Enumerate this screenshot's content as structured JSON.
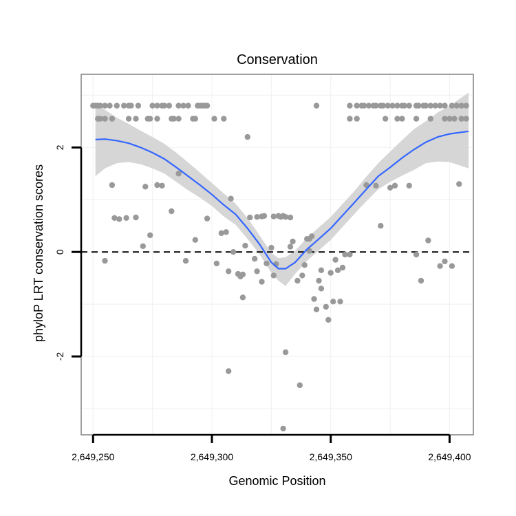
{
  "chart_data": {
    "type": "scatter",
    "title": "Conservation",
    "xlabel": "Genomic Position",
    "ylabel": "phyloP LRT conservation scores",
    "xlim": [
      2649245,
      2649410
    ],
    "ylim": [
      -3.5,
      3.4
    ],
    "x_ticks": [
      {
        "value": 2649250,
        "label": "2,649,250"
      },
      {
        "value": 2649300,
        "label": "2,649,300"
      },
      {
        "value": 2649350,
        "label": "2,649,350"
      },
      {
        "value": 2649400,
        "label": "2,649,400"
      }
    ],
    "y_ticks": [
      {
        "value": -2,
        "label": "-2"
      },
      {
        "value": 0,
        "label": "0"
      },
      {
        "value": 2,
        "label": "2"
      }
    ],
    "reference_line": {
      "y": 0,
      "style": "dashed",
      "color": "#000000"
    },
    "colors": {
      "points": "#999999",
      "smooth": "#3366ff",
      "ribbon": "#d6d6d6",
      "grid": "#f2f2f2",
      "frame": "#808080"
    },
    "points": [
      [
        2649250,
        2.8
      ],
      [
        2649251,
        2.8
      ],
      [
        2649252,
        2.8
      ],
      [
        2649253,
        2.8
      ],
      [
        2649255,
        2.8
      ],
      [
        2649257,
        2.8
      ],
      [
        2649260,
        2.8
      ],
      [
        2649263,
        2.8
      ],
      [
        2649265,
        2.8
      ],
      [
        2649266,
        2.8
      ],
      [
        2649269,
        2.8
      ],
      [
        2649275,
        2.8
      ],
      [
        2649277,
        2.8
      ],
      [
        2649279,
        2.8
      ],
      [
        2649280,
        2.8
      ],
      [
        2649282,
        2.8
      ],
      [
        2649286,
        2.8
      ],
      [
        2649288,
        2.8
      ],
      [
        2649290,
        2.8
      ],
      [
        2649294,
        2.8
      ],
      [
        2649295,
        2.8
      ],
      [
        2649296,
        2.8
      ],
      [
        2649297,
        2.8
      ],
      [
        2649298,
        2.8
      ],
      [
        2649252,
        2.55
      ],
      [
        2649253,
        2.55
      ],
      [
        2649255,
        2.55
      ],
      [
        2649258,
        2.55
      ],
      [
        2649265,
        2.55
      ],
      [
        2649268,
        2.55
      ],
      [
        2649273,
        2.55
      ],
      [
        2649274,
        2.55
      ],
      [
        2649277,
        2.55
      ],
      [
        2649283,
        2.55
      ],
      [
        2649284,
        2.55
      ],
      [
        2649286,
        2.55
      ],
      [
        2649292,
        2.55
      ],
      [
        2649293,
        2.55
      ],
      [
        2649301,
        2.55
      ],
      [
        2649305,
        2.55
      ],
      [
        2649315,
        2.2
      ],
      [
        2649286,
        1.5
      ],
      [
        2649258,
        1.28
      ],
      [
        2649272,
        1.25
      ],
      [
        2649277,
        1.28
      ],
      [
        2649279,
        1.27
      ],
      [
        2649308,
        1.02
      ],
      [
        2649283,
        0.78
      ],
      [
        2649259,
        0.65
      ],
      [
        2649261,
        0.63
      ],
      [
        2649264,
        0.65
      ],
      [
        2649268,
        0.66
      ],
      [
        2649298,
        0.64
      ],
      [
        2649274,
        0.32
      ],
      [
        2649271,
        0.11
      ],
      [
        2649255,
        -0.17
      ],
      [
        2649293,
        0.23
      ],
      [
        2649289,
        -0.17
      ],
      [
        2649304,
        0.36
      ],
      [
        2649306,
        0.38
      ],
      [
        2649302,
        -0.22
      ],
      [
        2649307,
        -0.37
      ],
      [
        2649309,
        0
      ],
      [
        2649311,
        -0.42
      ],
      [
        2649312,
        -0.47
      ],
      [
        2649313,
        -0.43
      ],
      [
        2649314,
        0.12
      ],
      [
        2649316,
        0.66
      ],
      [
        2649319,
        0.67
      ],
      [
        2649321,
        0.68
      ],
      [
        2649322,
        0.69
      ],
      [
        2649313,
        -0.87
      ],
      [
        2649318,
        -0.13
      ],
      [
        2649319,
        -0.37
      ],
      [
        2649321,
        -0.57
      ],
      [
        2649323,
        -0.22
      ],
      [
        2649325,
        0.08
      ],
      [
        2649326,
        -0.45
      ],
      [
        2649326,
        0.68
      ],
      [
        2649327,
        -0.23
      ],
      [
        2649328,
        0.69
      ],
      [
        2649329,
        0.67
      ],
      [
        2649330,
        0.69
      ],
      [
        2649331,
        0.67
      ],
      [
        2649333,
        0.66
      ],
      [
        2649307,
        -2.28
      ],
      [
        2649331,
        -1.92
      ],
      [
        2649337,
        -2.55
      ],
      [
        2649330,
        -3.38
      ],
      [
        2649333,
        0.1
      ],
      [
        2649334,
        0.2
      ],
      [
        2649336,
        -0.55
      ],
      [
        2649338,
        -0.45
      ],
      [
        2649339,
        -0.25
      ],
      [
        2649340,
        0.25
      ],
      [
        2649341,
        0.25
      ],
      [
        2649341,
        0.02
      ],
      [
        2649342,
        0.3
      ],
      [
        2649343,
        -0.9
      ],
      [
        2649344,
        -1.1
      ],
      [
        2649345,
        -0.55
      ],
      [
        2649346,
        -0.35
      ],
      [
        2649346,
        -0.7
      ],
      [
        2649348,
        -1.05
      ],
      [
        2649349,
        -1.3
      ],
      [
        2649350,
        -0.4
      ],
      [
        2649351,
        -0.95
      ],
      [
        2649352,
        -0.15
      ],
      [
        2649353,
        -0.35
      ],
      [
        2649354,
        -0.95
      ],
      [
        2649355,
        -0.3
      ],
      [
        2649356,
        -0.05
      ],
      [
        2649358,
        -0.05
      ],
      [
        2649344,
        2.8
      ],
      [
        2649358,
        2.8
      ],
      [
        2649361,
        2.8
      ],
      [
        2649363,
        2.8
      ],
      [
        2649364,
        2.8
      ],
      [
        2649366,
        2.8
      ],
      [
        2649368,
        2.8
      ],
      [
        2649369,
        2.8
      ],
      [
        2649371,
        2.8
      ],
      [
        2649372,
        2.8
      ],
      [
        2649374,
        2.8
      ],
      [
        2649376,
        2.8
      ],
      [
        2649378,
        2.8
      ],
      [
        2649380,
        2.8
      ],
      [
        2649381,
        2.8
      ],
      [
        2649383,
        2.8
      ],
      [
        2649386,
        2.8
      ],
      [
        2649387,
        2.8
      ],
      [
        2649389,
        2.8
      ],
      [
        2649390,
        2.8
      ],
      [
        2649392,
        2.8
      ],
      [
        2649394,
        2.8
      ],
      [
        2649396,
        2.8
      ],
      [
        2649398,
        2.8
      ],
      [
        2649401,
        2.8
      ],
      [
        2649403,
        2.8
      ],
      [
        2649405,
        2.8
      ],
      [
        2649407,
        2.8
      ],
      [
        2649358,
        2.55
      ],
      [
        2649361,
        2.55
      ],
      [
        2649373,
        2.55
      ],
      [
        2649378,
        2.55
      ],
      [
        2649380,
        2.55
      ],
      [
        2649386,
        2.55
      ],
      [
        2649392,
        2.55
      ],
      [
        2649398,
        2.55
      ],
      [
        2649400,
        2.55
      ],
      [
        2649402,
        2.55
      ],
      [
        2649405,
        2.55
      ],
      [
        2649407,
        2.55
      ],
      [
        2649365,
        1.28
      ],
      [
        2649369,
        1.27
      ],
      [
        2649375,
        1.23
      ],
      [
        2649377,
        1.27
      ],
      [
        2649383,
        1.27
      ],
      [
        2649404,
        1.3
      ],
      [
        2649371,
        0.5
      ],
      [
        2649391,
        0.22
      ],
      [
        2649386,
        -0.05
      ],
      [
        2649388,
        -0.55
      ],
      [
        2649396,
        -0.27
      ],
      [
        2649398,
        -0.18
      ],
      [
        2649401,
        -0.27
      ]
    ],
    "smooth": [
      [
        2649251,
        2.15
      ],
      [
        2649255,
        2.16
      ],
      [
        2649260,
        2.13
      ],
      [
        2649265,
        2.08
      ],
      [
        2649270,
        2.0
      ],
      [
        2649275,
        1.9
      ],
      [
        2649280,
        1.78
      ],
      [
        2649285,
        1.62
      ],
      [
        2649290,
        1.45
      ],
      [
        2649295,
        1.28
      ],
      [
        2649300,
        1.1
      ],
      [
        2649305,
        0.9
      ],
      [
        2649310,
        0.72
      ],
      [
        2649315,
        0.45
      ],
      [
        2649320,
        0.15
      ],
      [
        2649325,
        -0.2
      ],
      [
        2649328,
        -0.32
      ],
      [
        2649331,
        -0.32
      ],
      [
        2649335,
        -0.2
      ],
      [
        2649340,
        0.05
      ],
      [
        2649345,
        0.25
      ],
      [
        2649350,
        0.45
      ],
      [
        2649355,
        0.7
      ],
      [
        2649360,
        0.95
      ],
      [
        2649365,
        1.2
      ],
      [
        2649370,
        1.45
      ],
      [
        2649375,
        1.62
      ],
      [
        2649380,
        1.8
      ],
      [
        2649385,
        1.96
      ],
      [
        2649390,
        2.1
      ],
      [
        2649395,
        2.2
      ],
      [
        2649400,
        2.26
      ],
      [
        2649408,
        2.31
      ]
    ],
    "ribbon_upper": [
      [
        2649251,
        2.85
      ],
      [
        2649255,
        2.72
      ],
      [
        2649260,
        2.57
      ],
      [
        2649265,
        2.45
      ],
      [
        2649270,
        2.32
      ],
      [
        2649275,
        2.2
      ],
      [
        2649280,
        2.07
      ],
      [
        2649285,
        1.9
      ],
      [
        2649290,
        1.71
      ],
      [
        2649295,
        1.52
      ],
      [
        2649300,
        1.32
      ],
      [
        2649305,
        1.12
      ],
      [
        2649310,
        0.92
      ],
      [
        2649315,
        0.65
      ],
      [
        2649320,
        0.32
      ],
      [
        2649325,
        -0.02
      ],
      [
        2649328,
        -0.12
      ],
      [
        2649331,
        -0.1
      ],
      [
        2649335,
        0.02
      ],
      [
        2649340,
        0.27
      ],
      [
        2649345,
        0.47
      ],
      [
        2649350,
        0.67
      ],
      [
        2649355,
        0.92
      ],
      [
        2649360,
        1.17
      ],
      [
        2649365,
        1.44
      ],
      [
        2649370,
        1.7
      ],
      [
        2649375,
        1.92
      ],
      [
        2649380,
        2.14
      ],
      [
        2649385,
        2.35
      ],
      [
        2649390,
        2.5
      ],
      [
        2649395,
        2.67
      ],
      [
        2649400,
        2.8
      ],
      [
        2649408,
        3.05
      ]
    ],
    "ribbon_lower": [
      [
        2649251,
        1.45
      ],
      [
        2649255,
        1.6
      ],
      [
        2649260,
        1.7
      ],
      [
        2649265,
        1.72
      ],
      [
        2649270,
        1.68
      ],
      [
        2649275,
        1.6
      ],
      [
        2649280,
        1.5
      ],
      [
        2649285,
        1.34
      ],
      [
        2649290,
        1.18
      ],
      [
        2649295,
        1.04
      ],
      [
        2649300,
        0.88
      ],
      [
        2649305,
        0.68
      ],
      [
        2649310,
        0.52
      ],
      [
        2649315,
        0.25
      ],
      [
        2649320,
        -0.04
      ],
      [
        2649325,
        -0.4
      ],
      [
        2649328,
        -0.55
      ],
      [
        2649331,
        -0.65
      ],
      [
        2649335,
        -0.42
      ],
      [
        2649340,
        -0.17
      ],
      [
        2649345,
        0.03
      ],
      [
        2649350,
        0.23
      ],
      [
        2649355,
        0.48
      ],
      [
        2649360,
        0.73
      ],
      [
        2649365,
        0.97
      ],
      [
        2649370,
        1.2
      ],
      [
        2649375,
        1.34
      ],
      [
        2649380,
        1.46
      ],
      [
        2649385,
        1.57
      ],
      [
        2649390,
        1.7
      ],
      [
        2649395,
        1.73
      ],
      [
        2649400,
        1.72
      ],
      [
        2649408,
        1.6
      ]
    ]
  }
}
